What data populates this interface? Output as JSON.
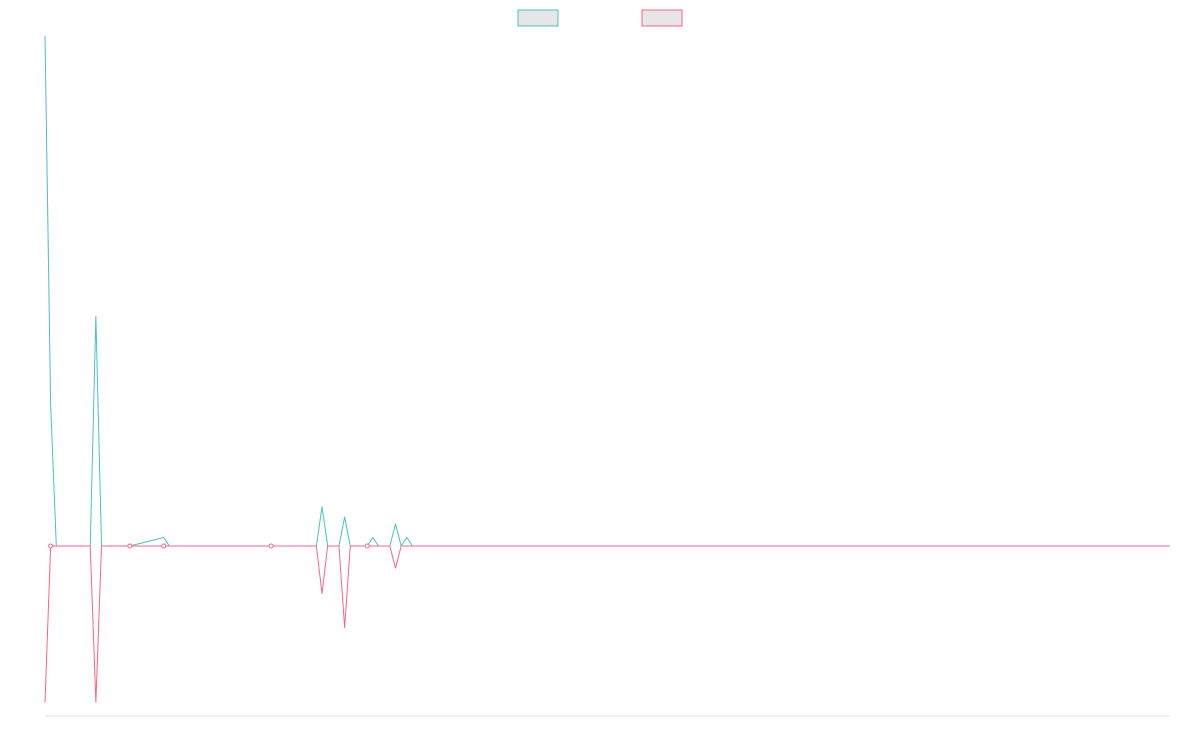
{
  "chart_data": {
    "type": "line",
    "title": "",
    "xlabel": "",
    "ylabel": "",
    "grid": false,
    "legend": "top-center",
    "x_count": 200,
    "ylim": [
      -1.0,
      3.0
    ],
    "series": [
      {
        "name": "",
        "color": "#4bc0c0",
        "points": [
          [
            0,
            3.0
          ],
          [
            1,
            0.83
          ],
          [
            2,
            0.0
          ],
          [
            8,
            0.0
          ],
          [
            9,
            1.35
          ],
          [
            10,
            0.0
          ],
          [
            15,
            0.0
          ],
          [
            21,
            0.05
          ],
          [
            22,
            0.0
          ],
          [
            40,
            0.0
          ],
          [
            48,
            0.0
          ],
          [
            49,
            0.23
          ],
          [
            50,
            0.0
          ],
          [
            52,
            0.0
          ],
          [
            53,
            0.17
          ],
          [
            54,
            0.0
          ],
          [
            57,
            0.0
          ],
          [
            58,
            0.05
          ],
          [
            59,
            0.0
          ],
          [
            61,
            0.0
          ],
          [
            62,
            0.13
          ],
          [
            63,
            0.0
          ],
          [
            64,
            0.05
          ],
          [
            65,
            0.0
          ],
          [
            199,
            0.0
          ]
        ]
      },
      {
        "name": "",
        "color": "#ff6384",
        "points": [
          [
            0,
            -0.92
          ],
          [
            1,
            0.0
          ],
          [
            8,
            0.0
          ],
          [
            9,
            -0.92
          ],
          [
            10,
            0.0
          ],
          [
            48,
            0.0
          ],
          [
            49,
            -0.28
          ],
          [
            50,
            0.0
          ],
          [
            52,
            0.0
          ],
          [
            53,
            -0.48
          ],
          [
            54,
            0.0
          ],
          [
            61,
            0.0
          ],
          [
            62,
            -0.13
          ],
          [
            63,
            0.0
          ],
          [
            199,
            0.0
          ]
        ]
      }
    ],
    "point_markers": [
      {
        "series": 1,
        "x": 1
      },
      {
        "series": 1,
        "x": 15
      },
      {
        "series": 1,
        "x": 21
      },
      {
        "series": 1,
        "x": 40
      },
      {
        "series": 1,
        "x": 57
      }
    ]
  }
}
